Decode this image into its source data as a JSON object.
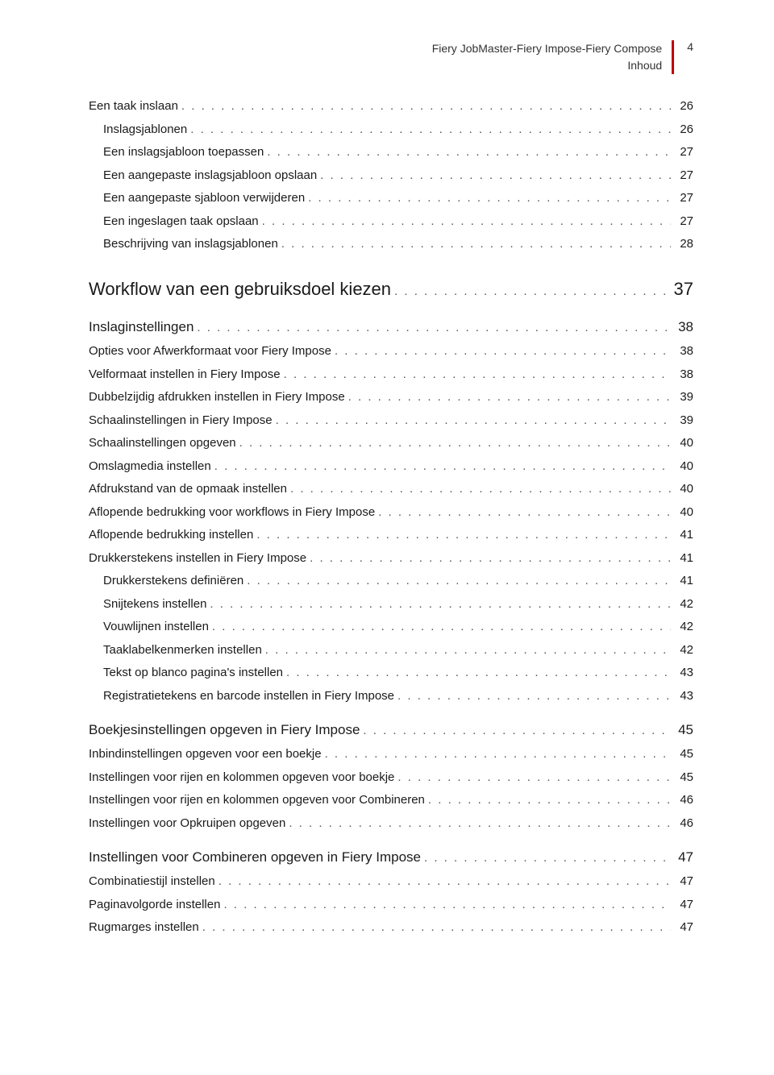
{
  "header": {
    "title": "Fiery JobMaster-Fiery Impose-Fiery Compose",
    "subtitle": "Inhoud",
    "page": "4"
  },
  "colors": {
    "accent": "#c00000",
    "text": "#1a1a1a",
    "bg": "#ffffff"
  },
  "toc": [
    {
      "level": 2,
      "label": "Een taak inslaan",
      "page": "26"
    },
    {
      "level": 3,
      "label": "Inslagsjablonen",
      "page": "26"
    },
    {
      "level": 3,
      "label": "Een inslagsjabloon toepassen",
      "page": "27"
    },
    {
      "level": 3,
      "label": "Een aangepaste inslagsjabloon opslaan",
      "page": "27"
    },
    {
      "level": 3,
      "label": "Een aangepaste sjabloon verwijderen",
      "page": "27"
    },
    {
      "level": 3,
      "label": "Een ingeslagen taak opslaan",
      "page": "27"
    },
    {
      "level": 3,
      "label": "Beschrijving van inslagsjablonen",
      "page": "28"
    },
    {
      "level": 0,
      "label": "Workflow van een gebruiksdoel kiezen",
      "page": "37"
    },
    {
      "level": 1,
      "label": "Inslaginstellingen",
      "page": "38"
    },
    {
      "level": 2,
      "label": "Opties voor Afwerkformaat voor Fiery Impose",
      "page": "38"
    },
    {
      "level": 2,
      "label": "Velformaat instellen in Fiery Impose",
      "page": "38"
    },
    {
      "level": 2,
      "label": "Dubbelzijdig afdrukken instellen in Fiery Impose",
      "page": "39"
    },
    {
      "level": 2,
      "label": "Schaalinstellingen in Fiery Impose",
      "page": "39"
    },
    {
      "level": 2,
      "label": "Schaalinstellingen opgeven",
      "page": "40"
    },
    {
      "level": 2,
      "label": "Omslagmedia instellen",
      "page": "40"
    },
    {
      "level": 2,
      "label": "Afdrukstand van de opmaak instellen",
      "page": "40"
    },
    {
      "level": 2,
      "label": "Aflopende bedrukking voor workflows in Fiery Impose",
      "page": "40"
    },
    {
      "level": 2,
      "label": "Aflopende bedrukking instellen",
      "page": "41"
    },
    {
      "level": 2,
      "label": "Drukkerstekens instellen in Fiery Impose",
      "page": "41"
    },
    {
      "level": 3,
      "label": "Drukkerstekens definiëren",
      "page": "41"
    },
    {
      "level": 3,
      "label": "Snijtekens instellen",
      "page": "42"
    },
    {
      "level": 3,
      "label": "Vouwlijnen instellen",
      "page": "42"
    },
    {
      "level": 3,
      "label": "Taaklabelkenmerken instellen",
      "page": "42"
    },
    {
      "level": 3,
      "label": "Tekst op blanco pagina's instellen",
      "page": "43"
    },
    {
      "level": 3,
      "label": "Registratietekens en barcode instellen in Fiery Impose",
      "page": "43"
    },
    {
      "level": 1,
      "label": "Boekjesinstellingen opgeven in Fiery Impose",
      "page": "45"
    },
    {
      "level": 2,
      "label": "Inbindinstellingen opgeven voor een boekje",
      "page": "45"
    },
    {
      "level": 2,
      "label": "Instellingen voor rijen en kolommen opgeven voor boekje",
      "page": "45"
    },
    {
      "level": 2,
      "label": "Instellingen voor rijen en kolommen opgeven voor Combineren",
      "page": "46"
    },
    {
      "level": 2,
      "label": "Instellingen voor Opkruipen opgeven",
      "page": "46"
    },
    {
      "level": 1,
      "label": "Instellingen voor Combineren opgeven in Fiery Impose",
      "page": "47"
    },
    {
      "level": 2,
      "label": "Combinatiestijl instellen",
      "page": "47"
    },
    {
      "level": 2,
      "label": "Paginavolgorde instellen",
      "page": "47"
    },
    {
      "level": 2,
      "label": "Rugmarges instellen",
      "page": "47"
    }
  ]
}
